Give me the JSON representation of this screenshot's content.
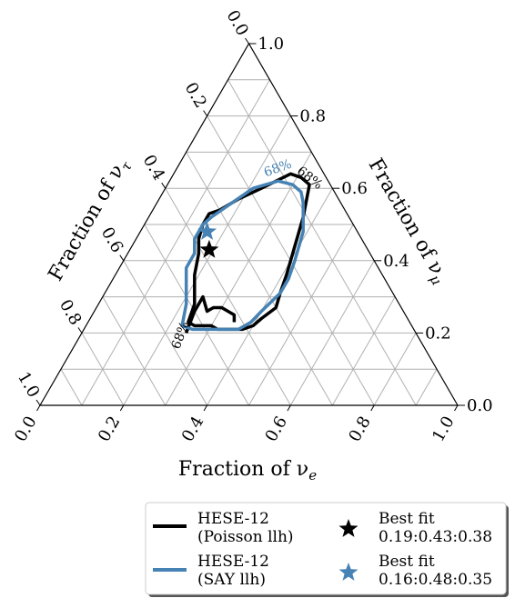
{
  "chart_data": {
    "type": "ternary contour",
    "axes": {
      "bottom": {
        "label": "Fraction of ν",
        "subscript": "e"
      },
      "right": {
        "label": "Fraction of ν",
        "subscript": "μ"
      },
      "left": {
        "label": "Fraction of ν",
        "subscript": "τ"
      }
    },
    "tick_labels": [
      "0.0",
      "0.2",
      "0.4",
      "0.6",
      "0.8",
      "1.0"
    ],
    "grid": true,
    "grid_step": 0.1,
    "series": [
      {
        "name": "HESE-12",
        "name_line2": "(Poisson llh)",
        "color": "#000000",
        "contour_label": "68%",
        "contour": [
          [
            0.38,
            0.21
          ],
          [
            0.34,
            0.21
          ],
          [
            0.32,
            0.21
          ],
          [
            0.3,
            0.22
          ],
          [
            0.28,
            0.22
          ],
          [
            0.26,
            0.22
          ],
          [
            0.24,
            0.23
          ],
          [
            0.23,
            0.28
          ],
          [
            0.21,
            0.32
          ],
          [
            0.19,
            0.36
          ],
          [
            0.17,
            0.42
          ],
          [
            0.15,
            0.46
          ],
          [
            0.14,
            0.5
          ],
          [
            0.14,
            0.53
          ],
          [
            0.16,
            0.54
          ],
          [
            0.19,
            0.57
          ],
          [
            0.23,
            0.6
          ],
          [
            0.28,
            0.64
          ],
          [
            0.31,
            0.63
          ],
          [
            0.34,
            0.61
          ],
          [
            0.35,
            0.58
          ],
          [
            0.36,
            0.55
          ],
          [
            0.37,
            0.52
          ],
          [
            0.38,
            0.48
          ],
          [
            0.39,
            0.44
          ],
          [
            0.4,
            0.4
          ],
          [
            0.41,
            0.36
          ],
          [
            0.42,
            0.31
          ],
          [
            0.43,
            0.27
          ],
          [
            0.41,
            0.24
          ],
          [
            0.4,
            0.22
          ],
          [
            0.38,
            0.21
          ]
        ],
        "contour_islands": [
          [
            [
              0.35,
              0.23
            ],
            [
              0.34,
              0.25
            ],
            [
              0.3,
              0.27
            ],
            [
              0.28,
              0.27
            ],
            [
              0.27,
              0.26
            ],
            [
              0.24,
              0.3
            ],
            [
              0.24,
              0.26
            ],
            [
              0.25,
              0.2
            ]
          ]
        ],
        "best_fit_label": "Best fit",
        "best_fit": {
          "nu_e": 0.19,
          "nu_mu": 0.43,
          "nu_tau": 0.38,
          "text": "0.19:0.43:0.38"
        },
        "best_fit_color": "#000000"
      },
      {
        "name": "HESE-12",
        "name_line2": "(SAY llh)",
        "color": "#4682b4",
        "contour_label": "68%",
        "contour": [
          [
            0.37,
            0.21
          ],
          [
            0.33,
            0.21
          ],
          [
            0.3,
            0.21
          ],
          [
            0.26,
            0.21
          ],
          [
            0.23,
            0.22
          ],
          [
            0.21,
            0.28
          ],
          [
            0.18,
            0.34
          ],
          [
            0.16,
            0.38
          ],
          [
            0.16,
            0.42
          ],
          [
            0.14,
            0.46
          ],
          [
            0.14,
            0.5
          ],
          [
            0.15,
            0.52
          ],
          [
            0.18,
            0.56
          ],
          [
            0.21,
            0.6
          ],
          [
            0.26,
            0.62
          ],
          [
            0.3,
            0.61
          ],
          [
            0.33,
            0.59
          ],
          [
            0.35,
            0.56
          ],
          [
            0.37,
            0.52
          ],
          [
            0.39,
            0.48
          ],
          [
            0.4,
            0.44
          ],
          [
            0.41,
            0.4
          ],
          [
            0.42,
            0.35
          ],
          [
            0.42,
            0.31
          ],
          [
            0.4,
            0.26
          ],
          [
            0.39,
            0.23
          ],
          [
            0.37,
            0.21
          ]
        ],
        "best_fit_label": "Best fit",
        "best_fit": {
          "nu_e": 0.16,
          "nu_mu": 0.48,
          "nu_tau": 0.35,
          "text": "0.16:0.48:0.35"
        },
        "best_fit_color": "#4682b4"
      }
    ],
    "legend_placement": "bottom-right"
  }
}
